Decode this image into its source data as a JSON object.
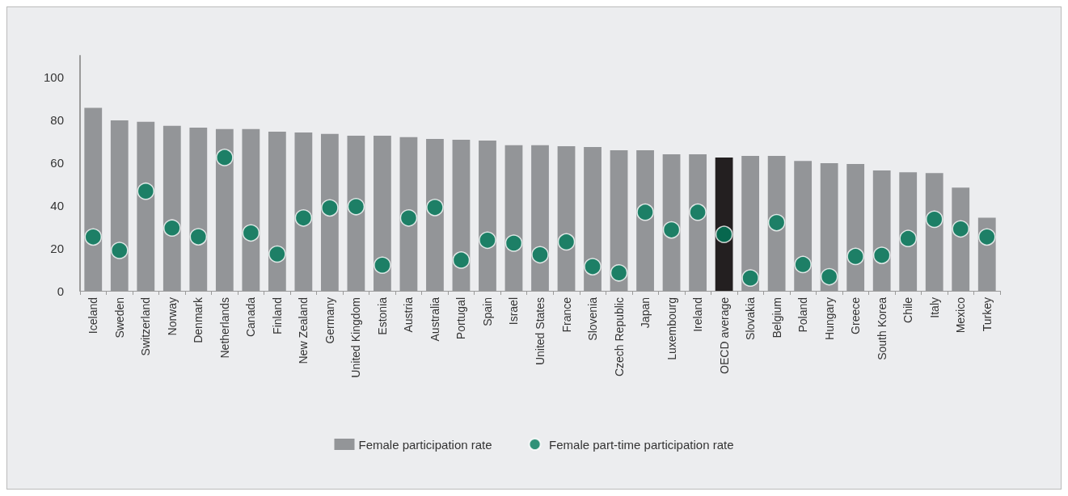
{
  "chart_data": {
    "type": "bar",
    "categories": [
      "Iceland",
      "Sweden",
      "Switzerland",
      "Norway",
      "Denmark",
      "Netherlands",
      "Canada",
      "Finland",
      "New Zealand",
      "Germany",
      "United Kingdom",
      "Estonia",
      "Austria",
      "Australia",
      "Portugal",
      "Spain",
      "Israel",
      "United States",
      "France",
      "Slovenia",
      "Czech Republic",
      "Japan",
      "Luxembourg",
      "Ireland",
      "OECD average",
      "Slovakia",
      "Belgium",
      "Poland",
      "Hungary",
      "Greece",
      "South Korea",
      "Chile",
      "Italy",
      "Mexico",
      "Turkey"
    ],
    "series": [
      {
        "name": "Female participation rate",
        "type": "bar",
        "color": "#939598",
        "colors": [
          "#939598",
          "#939598",
          "#939598",
          "#939598",
          "#939598",
          "#939598",
          "#939598",
          "#939598",
          "#939598",
          "#939598",
          "#939598",
          "#939598",
          "#939598",
          "#939598",
          "#939598",
          "#939598",
          "#939598",
          "#939598",
          "#939598",
          "#939598",
          "#939598",
          "#939598",
          "#939598",
          "#939598",
          "#231f20",
          "#939598",
          "#939598",
          "#939598",
          "#939598",
          "#939598",
          "#939598",
          "#939598",
          "#939598",
          "#939598",
          "#939598"
        ],
        "values": [
          85.6,
          79.8,
          79.1,
          77.2,
          76.4,
          75.7,
          75.7,
          74.5,
          74.1,
          73.4,
          72.6,
          72.6,
          71.9,
          71.1,
          70.7,
          70.3,
          68.1,
          68.1,
          67.7,
          67.3,
          65.8,
          65.8,
          63.9,
          63.9,
          62.4,
          63.1,
          63.1,
          60.8,
          59.7,
          59.3,
          56.3,
          55.5,
          55.1,
          48.3,
          34.2
        ]
      },
      {
        "name": "Female part-time participation rate",
        "type": "scatter",
        "color": "#00795a",
        "x": [
          "Iceland",
          "Sweden",
          "Switzerland",
          "Norway",
          "Denmark",
          "Netherlands",
          "Canada",
          "Finland",
          "New Zealand",
          "Germany",
          "United Kingdom",
          "Estonia",
          "Austria",
          "Australia",
          "Portugal",
          "Spain",
          "Israel",
          "United States",
          "France",
          "Slovenia",
          "Czech Republic",
          "Japan",
          "Luxembourg",
          "Ireland",
          "OECD average",
          "Slovakia",
          "Belgium",
          "Poland",
          "Hungary",
          "Greece",
          "South Korea",
          "Chile",
          "Italy",
          "Mexico",
          "Turkey"
        ],
        "values": [
          25.2,
          18.9,
          46.6,
          29.4,
          25.3,
          62.4,
          27.1,
          17.2,
          34.1,
          38.8,
          39.4,
          12.0,
          34.1,
          39.0,
          14.4,
          23.7,
          22.3,
          16.9,
          22.9,
          11.3,
          8.4,
          36.8,
          28.5,
          36.8,
          26.4,
          6.0,
          31.9,
          12.3,
          6.6,
          16.1,
          16.6,
          24.5,
          33.5,
          29.0,
          25.2
        ]
      }
    ],
    "ylim": [
      0,
      110
    ],
    "yticks": [
      0,
      20,
      40,
      60,
      80,
      100
    ],
    "legend": "bottom",
    "marker": "circle"
  }
}
